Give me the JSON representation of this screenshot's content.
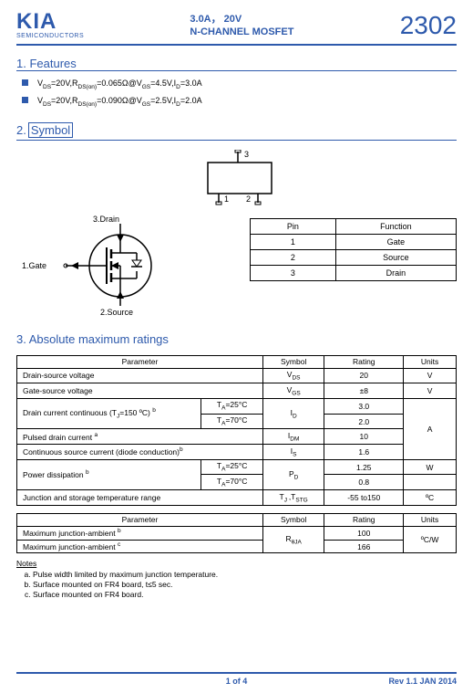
{
  "header": {
    "brand_big": "KIA",
    "brand_small": "SEMICONDUCTORS",
    "title_line1": "3.0A，  20V",
    "title_line2": "N-CHANNEL MOSFET",
    "partno": "2302"
  },
  "section1": {
    "num": "1",
    "title": ". Features",
    "bullets": [
      "V<sub>DS</sub>=20V,R<sub>DS(on)</sub>=0.065Ω@V<sub>GS</sub>=4.5V,I<sub>D</sub>=3.0A",
      "V<sub>DS</sub>=20V,R<sub>DS(on)</sub>=0.090Ω@V<sub>GS</sub>=2.5V,I<sub>D</sub>=2.0A"
    ]
  },
  "section2": {
    "num": "2.",
    "title": "Symbol"
  },
  "package": {
    "pins": {
      "p1": "1",
      "p2": "2",
      "p3": "3"
    }
  },
  "mosfet": {
    "labels": {
      "gate": "1.Gate",
      "source": "2.Source",
      "drain": "3.Drain"
    }
  },
  "pin_table": {
    "headers": [
      "Pin",
      "Function"
    ],
    "rows": [
      [
        "1",
        "Gate"
      ],
      [
        "2",
        "Source"
      ],
      [
        "3",
        "Drain"
      ]
    ]
  },
  "section3": {
    "num": "3.",
    "title": " Absolute maximum ratings"
  },
  "amr": {
    "headers": [
      "Parameter",
      "Symbol",
      "Rating",
      "Units"
    ],
    "rows": [
      {
        "param": "Drain-source voltage",
        "symbol": "V<sub>DS</sub>",
        "rating": "20",
        "units": "V"
      },
      {
        "param": "Gate-source voltage",
        "symbol": "V<sub>GS</sub>",
        "rating": "±8",
        "units": "V"
      }
    ],
    "dc_row": {
      "param": "Drain current continuous (T<sub>J</sub>=150 ºC) <sup>b</sup>",
      "cond1": "T<sub>A</sub>=25°C",
      "cond2": "T<sub>A</sub>=70°C",
      "symbol": "I<sub>D</sub>",
      "r1": "3.0",
      "r2": "2.0"
    },
    "idm": {
      "param": "Pulsed drain current <sup>a</sup>",
      "symbol": "I<sub>DM</sub>",
      "rating": "10"
    },
    "is": {
      "param": "Continuous source current (diode conduction)<sup>b</sup>",
      "symbol": "I<sub>S</sub>",
      "rating": "1.6"
    },
    "pd_row": {
      "param": "Power dissipation <sup>b</sup>",
      "cond1": "T<sub>A</sub>=25°C",
      "cond2": "T<sub>A</sub>=70°C",
      "symbol": "P<sub>D</sub>",
      "r1": "1.25",
      "r2": "0.8",
      "units": "W"
    },
    "tstg": {
      "param": "Junction and storage temperature range",
      "symbol": "T<sub>J </sub>,T<sub>STG</sub>",
      "rating": "-55 to150",
      "units": "ºC"
    },
    "units_A": "A"
  },
  "therm": {
    "headers": [
      "Parameter",
      "Symbol",
      "Rating",
      "Units"
    ],
    "rows": [
      {
        "param": "Maximum junction-ambient <sup>b</sup>",
        "rating": "100"
      },
      {
        "param": "Maximum junction-ambient <sup>c</sup>",
        "rating": "166"
      }
    ],
    "symbol": "R<sub>θJA</sub>",
    "units": "ºC/W"
  },
  "notes": {
    "title": "Notes",
    "items": [
      "Pulse width limited by maximum junction temperature.",
      "Surface mounted on FR4 board, t≤5 sec.",
      "Surface mounted on FR4 board."
    ]
  },
  "footer": {
    "left": "",
    "center": "1 of 4",
    "right": "Rev 1.1 JAN 2014"
  }
}
